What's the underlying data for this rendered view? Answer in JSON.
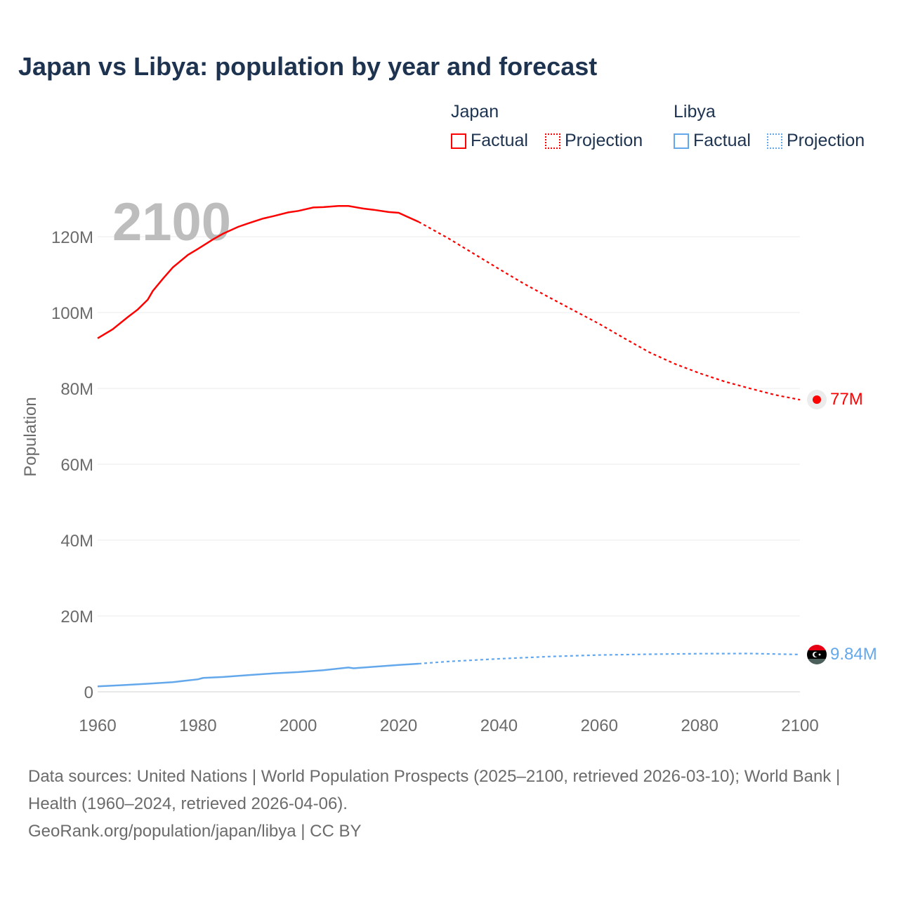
{
  "chart_data": {
    "type": "line",
    "title": "Japan vs Libya: population by year and forecast",
    "xlabel": "",
    "ylabel": "Population",
    "xlim": [
      1960,
      2100
    ],
    "ylim": [
      0,
      130
    ],
    "x_ticks": [
      "1960",
      "1980",
      "2000",
      "2020",
      "2040",
      "2060",
      "2080",
      "2100"
    ],
    "y_ticks": [
      {
        "v": 0,
        "label": "0"
      },
      {
        "v": 20,
        "label": "20M"
      },
      {
        "v": 40,
        "label": "40M"
      },
      {
        "v": 60,
        "label": "60M"
      },
      {
        "v": 80,
        "label": "80M"
      },
      {
        "v": 100,
        "label": "100M"
      },
      {
        "v": 120,
        "label": "120M"
      }
    ],
    "year_watermark": "2100",
    "legend": {
      "placement": "top-right",
      "groups": [
        {
          "name": "Japan",
          "factual": "Factual",
          "projection": "Projection"
        },
        {
          "name": "Libya",
          "factual": "Factual",
          "projection": "Projection"
        }
      ]
    },
    "series": [
      {
        "name": "Japan",
        "color": "#ff0000",
        "end_label": "77M",
        "factual": [
          [
            1960,
            93.2
          ],
          [
            1963,
            95.6
          ],
          [
            1966,
            98.8
          ],
          [
            1968,
            100.8
          ],
          [
            1970,
            103.4
          ],
          [
            1971,
            105.7
          ],
          [
            1973,
            108.9
          ],
          [
            1975,
            111.9
          ],
          [
            1978,
            115.2
          ],
          [
            1980,
            116.8
          ],
          [
            1983,
            119.3
          ],
          [
            1985,
            120.8
          ],
          [
            1988,
            122.6
          ],
          [
            1990,
            123.5
          ],
          [
            1993,
            124.8
          ],
          [
            1995,
            125.4
          ],
          [
            1998,
            126.4
          ],
          [
            2000,
            126.8
          ],
          [
            2003,
            127.7
          ],
          [
            2005,
            127.8
          ],
          [
            2008,
            128.1
          ],
          [
            2010,
            128.1
          ],
          [
            2013,
            127.4
          ],
          [
            2015,
            127.1
          ],
          [
            2018,
            126.5
          ],
          [
            2020,
            126.3
          ],
          [
            2022,
            125.1
          ],
          [
            2024,
            123.9
          ]
        ],
        "projection": [
          [
            2024,
            123.9
          ],
          [
            2030,
            119.5
          ],
          [
            2035,
            115.5
          ],
          [
            2040,
            111.5
          ],
          [
            2045,
            107.6
          ],
          [
            2050,
            104
          ],
          [
            2055,
            100.5
          ],
          [
            2060,
            97
          ],
          [
            2065,
            93.2
          ],
          [
            2070,
            89.5
          ],
          [
            2075,
            86.5
          ],
          [
            2080,
            84
          ],
          [
            2085,
            81.8
          ],
          [
            2090,
            80
          ],
          [
            2095,
            78.3
          ],
          [
            2100,
            77
          ]
        ]
      },
      {
        "name": "Libya",
        "color": "#64a8ec",
        "end_label": "9.84M",
        "factual": [
          [
            1960,
            1.45
          ],
          [
            1965,
            1.75
          ],
          [
            1970,
            2.13
          ],
          [
            1975,
            2.55
          ],
          [
            1980,
            3.3
          ],
          [
            1981,
            3.65
          ],
          [
            1985,
            3.9
          ],
          [
            1990,
            4.4
          ],
          [
            1995,
            4.85
          ],
          [
            2000,
            5.2
          ],
          [
            2005,
            5.7
          ],
          [
            2010,
            6.4
          ],
          [
            2011,
            6.2
          ],
          [
            2015,
            6.6
          ],
          [
            2020,
            7.1
          ],
          [
            2024,
            7.4
          ]
        ],
        "projection": [
          [
            2024,
            7.4
          ],
          [
            2030,
            8.0
          ],
          [
            2040,
            8.7
          ],
          [
            2050,
            9.3
          ],
          [
            2060,
            9.7
          ],
          [
            2070,
            9.9
          ],
          [
            2080,
            10.05
          ],
          [
            2090,
            10.1
          ],
          [
            2100,
            9.84
          ]
        ]
      }
    ]
  },
  "footer": {
    "sources": "Data sources: United Nations | World Population Prospects (2025–2100, retrieved 2026-03-10); World Bank | Health (1960–2024, retrieved 2026-04-06).",
    "credit": "GeoRank.org/population/japan/libya | CC BY"
  }
}
